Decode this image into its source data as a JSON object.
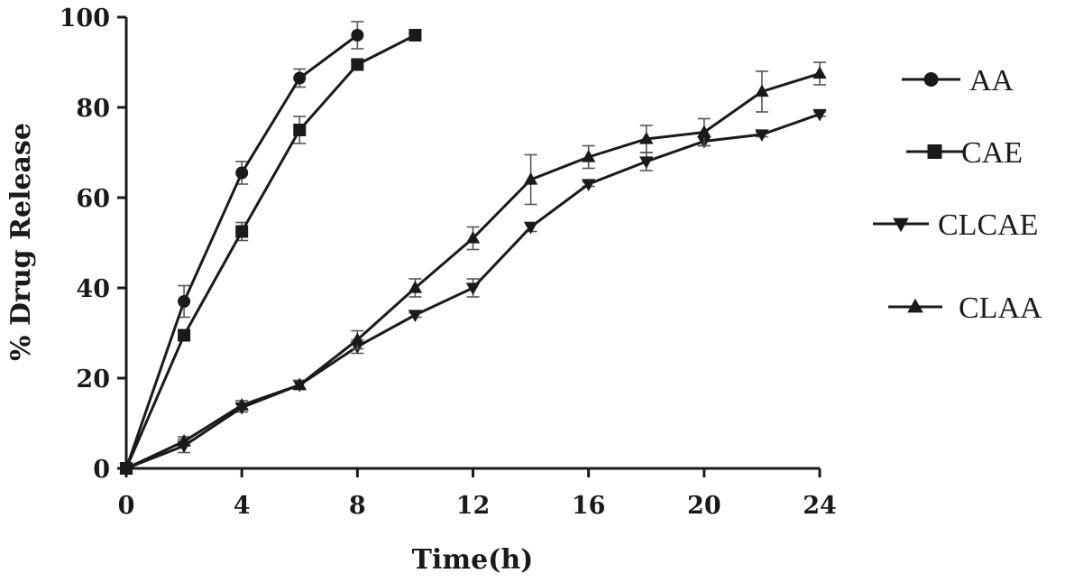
{
  "chart_data": {
    "type": "line",
    "xlabel": "Time(h)",
    "ylabel": "% Drug Release",
    "xlim": [
      0,
      24
    ],
    "ylim": [
      0,
      100
    ],
    "xticks": [
      0,
      4,
      8,
      12,
      16,
      20,
      24
    ],
    "yticks": [
      0,
      20,
      40,
      60,
      80,
      100
    ],
    "legend_position": "right",
    "grid": false,
    "series": [
      {
        "name": "AA",
        "marker": "circle",
        "x": [
          0,
          2,
          4,
          6,
          8
        ],
        "y": [
          0,
          37,
          65.5,
          86.5,
          96
        ],
        "err": [
          0,
          3.5,
          2.5,
          2,
          3
        ]
      },
      {
        "name": "CAE",
        "marker": "square",
        "x": [
          0,
          2,
          4,
          6,
          8,
          10
        ],
        "y": [
          0,
          29.5,
          52.5,
          75,
          89.5,
          96
        ],
        "err": [
          0,
          1,
          2,
          3,
          1,
          0.5
        ]
      },
      {
        "name": "CLCAE",
        "marker": "triangle-down",
        "x": [
          0,
          2,
          4,
          6,
          8,
          10,
          12,
          14,
          16,
          18,
          20,
          22,
          24
        ],
        "y": [
          0,
          5,
          13.5,
          18.5,
          27,
          34,
          40,
          53.5,
          63,
          68,
          72.5,
          74,
          78.5
        ],
        "err": [
          0,
          1.5,
          1,
          1,
          1.5,
          0.5,
          2,
          1,
          0.5,
          2,
          1,
          0.5,
          0.5
        ]
      },
      {
        "name": "CLAA",
        "marker": "triangle-up",
        "x": [
          0,
          2,
          4,
          6,
          8,
          10,
          12,
          14,
          16,
          18,
          20,
          22,
          24
        ],
        "y": [
          0,
          6,
          14,
          18.5,
          28.5,
          40,
          51,
          64,
          69,
          73,
          74.5,
          83.5,
          87.5
        ],
        "err": [
          0,
          1,
          1,
          1,
          2,
          2,
          2.5,
          5.5,
          2.5,
          3,
          3,
          4.5,
          2.5
        ]
      }
    ]
  }
}
